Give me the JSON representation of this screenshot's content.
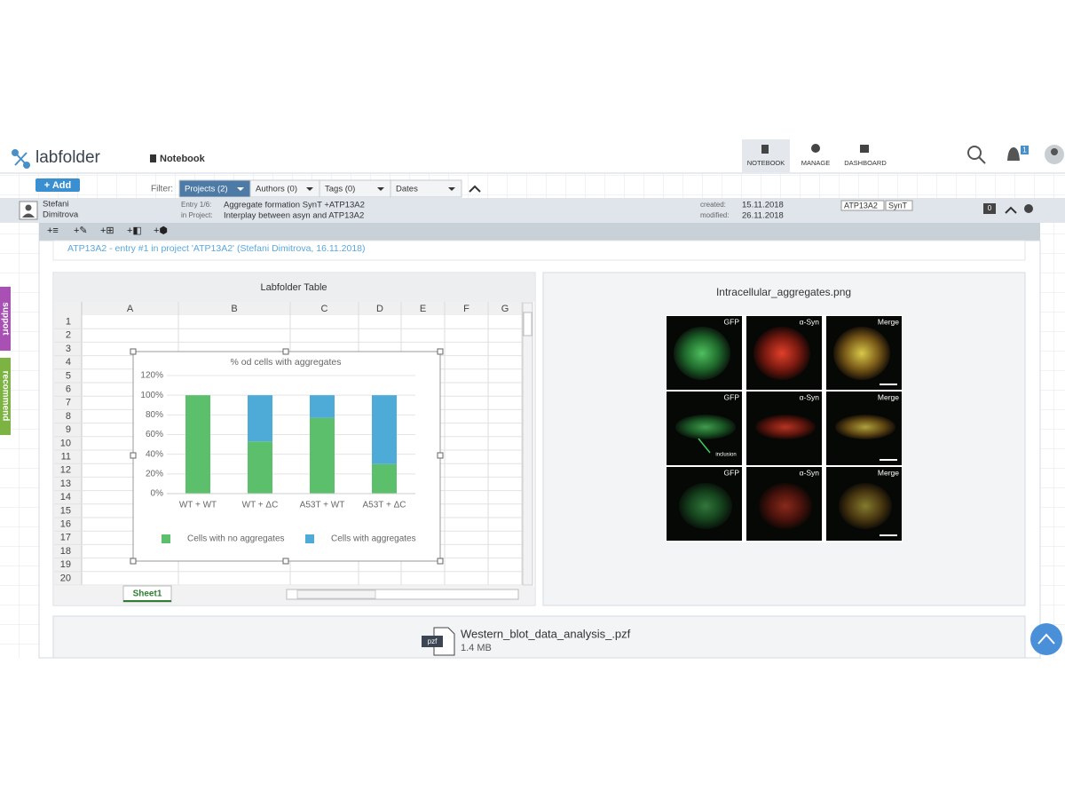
{
  "header": {
    "logo": "labfolder",
    "section": "Notebook",
    "nav": [
      "NOTEBOOK",
      "MANAGE",
      "DASHBOARD"
    ],
    "notifications": "1"
  },
  "toolbar": {
    "add": "+ Add",
    "filter_label": "Filter:",
    "filters": [
      "Projects (2)",
      "Authors (0)",
      "Tags (0)",
      "Dates"
    ]
  },
  "entry": {
    "author": [
      "Stefani",
      "Dimitrova"
    ],
    "entry_label": "Entry 1/6:",
    "entry_title": "Aggregate formation SynT +ATP13A2",
    "project_label": "in Project:",
    "project": "Interplay between asyn and ATP13A2",
    "created_label": "created:",
    "created": "15.11.2018",
    "modified_label": "modified:",
    "modified": "26.11.2018",
    "tags": [
      "ATP13A2",
      "SynT"
    ],
    "comments": "0",
    "tools": [
      "+≡",
      "+✎",
      "+⊞",
      "+◧",
      "+⬢"
    ]
  },
  "link": "ATP13A2 - entry #1 in project 'ATP13A2' (Stefani Dimitrova, 16.11.2018)",
  "table": {
    "title": "Labfolder Table",
    "columns": [
      "A",
      "B",
      "C",
      "D",
      "E",
      "F",
      "G"
    ],
    "rows": [
      1,
      2,
      3,
      4,
      5,
      6,
      7,
      8,
      9,
      10,
      11,
      12,
      13,
      14,
      15,
      16,
      17,
      18,
      19,
      20
    ],
    "sheet": "Sheet1"
  },
  "image": {
    "title": "Intracellular_aggregates.png",
    "panel_labels": [
      "GFP",
      "α-Syn",
      "Merge"
    ],
    "annotation": "inclusion"
  },
  "file": {
    "icon": "pzf",
    "name": "Western_blot_data_analysis_.pzf",
    "size": "1.4 MB"
  },
  "side_tabs": [
    "support",
    "recommend"
  ],
  "chart_data": {
    "type": "bar",
    "stacked": true,
    "title": "% od cells with aggregates",
    "categories": [
      "WT + WT",
      "WT + ΔC",
      "A53T + WT",
      "A53T + ΔC"
    ],
    "series": [
      {
        "name": "Cells with no aggregates",
        "color": "#5cbf6b",
        "values": [
          100,
          53,
          77,
          30
        ]
      },
      {
        "name": "Cells with aggregates",
        "color": "#4eaad6",
        "values": [
          0,
          47,
          23,
          70
        ]
      }
    ],
    "ylim": [
      0,
      120
    ],
    "yticks": [
      {
        "value": 0,
        "label": "0%"
      },
      {
        "value": 20,
        "label": "20%"
      },
      {
        "value": 40,
        "label": "40%"
      },
      {
        "value": 60,
        "label": "60%"
      },
      {
        "value": 80,
        "label": "80%"
      },
      {
        "value": 100,
        "label": "100%"
      },
      {
        "value": 120,
        "label": "120%"
      }
    ],
    "grid": true,
    "legend": "bottom"
  }
}
